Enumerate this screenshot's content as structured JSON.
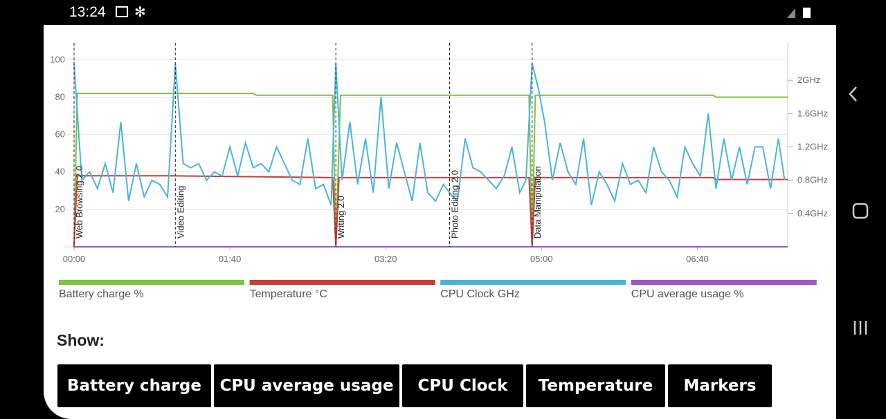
{
  "status_bar": {
    "time": "13:24"
  },
  "chart_data": {
    "type": "line",
    "xlim": [
      0,
      458
    ],
    "xticks": [
      {
        "value": 0,
        "label": "00:00"
      },
      {
        "value": 100,
        "label": "01:40"
      },
      {
        "value": 200,
        "label": "03:20"
      },
      {
        "value": 300,
        "label": "05:00"
      },
      {
        "value": 400,
        "label": "06:40"
      }
    ],
    "ylim": [
      0,
      109
    ],
    "yticks": [
      20,
      40,
      60,
      80,
      100
    ],
    "y2lim": [
      0,
      2.45
    ],
    "y2ticks": [
      {
        "value": 0.4,
        "label": "0.4GHz"
      },
      {
        "value": 0.8,
        "label": "0.8GHz"
      },
      {
        "value": 1.2,
        "label": "1.2GHz"
      },
      {
        "value": 1.6,
        "label": "1.6GHz"
      },
      {
        "value": 2,
        "label": "2GHz"
      }
    ],
    "grid": true,
    "markers": [
      {
        "x": 0,
        "label": "Web Browsing 2.0"
      },
      {
        "x": 65,
        "label": "Video Editing"
      },
      {
        "x": 168,
        "label": "Writing 2.0"
      },
      {
        "x": 241,
        "label": "Photo Editing 2.0"
      },
      {
        "x": 294,
        "label": "Data Manipulation"
      }
    ],
    "series": [
      {
        "name": "Battery charge %",
        "color": "#7dc243",
        "x": [
          0,
          2,
          115,
          117,
          166,
          168,
          171,
          292,
          294,
          296,
          410,
          412,
          458
        ],
        "values": [
          0,
          82,
          82,
          81,
          81,
          0,
          81,
          81,
          0,
          81,
          81,
          80,
          80
        ]
      },
      {
        "name": "Temperature °C",
        "color": "#c83c3c",
        "x": [
          0,
          2,
          60,
          166,
          168,
          170,
          292,
          294,
          296,
          410,
          412,
          458
        ],
        "values": [
          0,
          38,
          38,
          37,
          0,
          37,
          37,
          0,
          37,
          37,
          36,
          36
        ]
      },
      {
        "name": "CPU Clock GHz",
        "color": "#4ab4dc",
        "axis": "y2",
        "x": [
          0,
          5,
          10,
          15,
          20,
          25,
          30,
          35,
          40,
          45,
          50,
          55,
          60,
          65,
          70,
          75,
          80,
          85,
          90,
          95,
          100,
          105,
          110,
          115,
          120,
          125,
          130,
          135,
          140,
          145,
          150,
          155,
          160,
          165,
          168,
          172,
          177,
          182,
          187,
          192,
          197,
          202,
          207,
          212,
          217,
          222,
          227,
          232,
          237,
          241,
          246,
          251,
          256,
          261,
          266,
          271,
          276,
          281,
          286,
          290,
          294,
          298,
          302,
          307,
          312,
          317,
          322,
          327,
          332,
          337,
          342,
          347,
          352,
          357,
          362,
          367,
          372,
          377,
          382,
          387,
          392,
          397,
          402,
          407,
          412,
          417,
          422,
          427,
          432,
          437,
          442,
          447,
          452,
          456
        ],
        "values": [
          2.2,
          0.8,
          0.9,
          0.7,
          1.0,
          0.65,
          1.5,
          0.55,
          1.0,
          0.6,
          0.8,
          0.75,
          0.6,
          2.2,
          1.0,
          0.95,
          1.0,
          0.8,
          0.9,
          0.85,
          1.2,
          0.85,
          1.25,
          0.95,
          1.0,
          0.9,
          1.2,
          1.0,
          0.8,
          0.75,
          1.3,
          0.7,
          0.75,
          0.5,
          2.2,
          0.8,
          1.5,
          0.75,
          1.3,
          0.65,
          1.8,
          0.7,
          1.25,
          0.9,
          0.55,
          1.25,
          0.65,
          0.55,
          0.75,
          0.65,
          0.55,
          1.3,
          0.95,
          0.9,
          0.8,
          0.7,
          0.85,
          1.2,
          0.65,
          0.8,
          2.2,
          1.9,
          1.5,
          0.8,
          1.25,
          0.9,
          0.75,
          1.3,
          0.5,
          0.9,
          0.75,
          0.55,
          1.0,
          0.75,
          0.8,
          0.65,
          1.2,
          0.9,
          0.8,
          0.6,
          1.2,
          1.0,
          0.85,
          1.6,
          0.7,
          1.3,
          0.8,
          1.2,
          0.75,
          1.2,
          1.2,
          0.7,
          1.3,
          0.8
        ]
      },
      {
        "name": "CPU average usage %",
        "color": "#9b59c4",
        "x": [
          0,
          458
        ],
        "values": [
          0,
          0
        ]
      }
    ]
  },
  "controls": {
    "label": "Show:",
    "buttons": [
      "Battery charge",
      "CPU average usage",
      "CPU Clock",
      "Temperature",
      "Markers"
    ]
  }
}
